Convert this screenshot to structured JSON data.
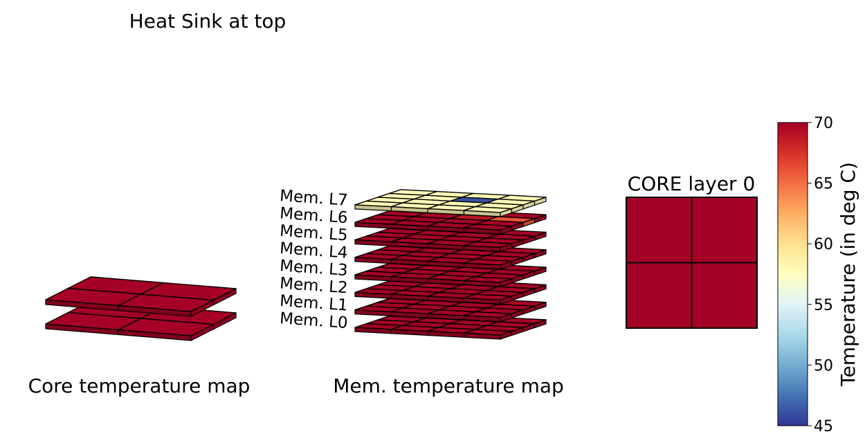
{
  "title": "Heat Sink at top",
  "panel_core_label": "Core temperature map",
  "panel_mem_label": "Mem. temperature map",
  "core_inset_title": "CORE layer 0",
  "colorbar": {
    "label": "Temperature (in deg C)",
    "min": 45,
    "max": 70,
    "ticks": [
      45,
      50,
      55,
      60,
      65,
      70
    ],
    "colormap": "RdYlBu_r"
  },
  "chart_data": [
    {
      "type": "heatmap",
      "name": "core-stack",
      "layers": [
        {
          "grid": [
            [
              70,
              70
            ],
            [
              70,
              70
            ]
          ]
        },
        {
          "grid": [
            [
              70,
              70
            ],
            [
              70,
              70
            ]
          ]
        }
      ]
    },
    {
      "type": "heatmap",
      "name": "mem-stack",
      "layer_labels": [
        "Mem. L0",
        "Mem. L1",
        "Mem. L2",
        "Mem. L3",
        "Mem. L4",
        "Mem. L5",
        "Mem. L6",
        "Mem. L7"
      ],
      "layers": [
        {
          "grid": [
            [
              70,
              70,
              70,
              70
            ],
            [
              70,
              70,
              70,
              70
            ],
            [
              70,
              70,
              70,
              70
            ],
            [
              70,
              70,
              70,
              70
            ]
          ]
        },
        {
          "grid": [
            [
              70,
              70,
              70,
              70
            ],
            [
              70,
              70,
              70,
              70
            ],
            [
              70,
              70,
              70,
              70
            ],
            [
              70,
              70,
              70,
              70
            ]
          ]
        },
        {
          "grid": [
            [
              70,
              70,
              70,
              70
            ],
            [
              70,
              70,
              70,
              70
            ],
            [
              70,
              70,
              70,
              70
            ],
            [
              70,
              70,
              70,
              70
            ]
          ]
        },
        {
          "grid": [
            [
              70,
              70,
              70,
              70
            ],
            [
              70,
              70,
              70,
              70
            ],
            [
              70,
              70,
              70,
              70
            ],
            [
              70,
              70,
              70,
              70
            ]
          ]
        },
        {
          "grid": [
            [
              70,
              70,
              70,
              70
            ],
            [
              70,
              70,
              70,
              70
            ],
            [
              70,
              70,
              70,
              70
            ],
            [
              70,
              70,
              70,
              70
            ]
          ]
        },
        {
          "grid": [
            [
              70,
              70,
              70,
              70
            ],
            [
              70,
              70,
              70,
              70
            ],
            [
              70,
              70,
              70,
              70
            ],
            [
              70,
              70,
              70,
              70
            ]
          ]
        },
        {
          "grid": [
            [
              70,
              70,
              70,
              70
            ],
            [
              70,
              70,
              70,
              70
            ],
            [
              70,
              70,
              69,
              66
            ],
            [
              70,
              70,
              70,
              70
            ]
          ]
        },
        {
          "grid": [
            [
              58,
              58,
              58,
              58
            ],
            [
              58,
              58,
              58,
              58
            ],
            [
              58,
              58,
              46,
              58
            ],
            [
              58,
              58,
              58,
              58
            ]
          ]
        }
      ]
    },
    {
      "type": "heatmap",
      "name": "core-layer-0",
      "grid": [
        [
          70,
          70
        ],
        [
          70,
          70
        ]
      ]
    }
  ]
}
